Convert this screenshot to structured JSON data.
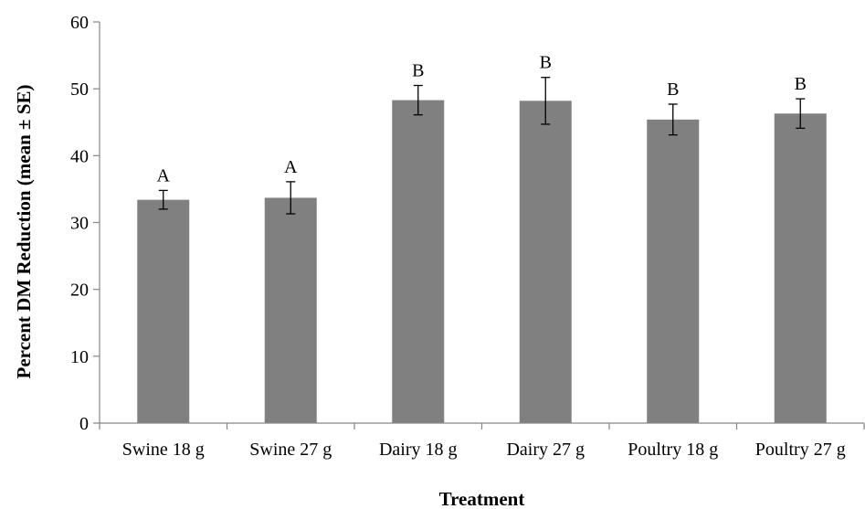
{
  "chart_data": {
    "type": "bar",
    "title": "",
    "xlabel": "Treatment",
    "ylabel": "Percent DM Reduction (mean ± SE)",
    "ylim": [
      0,
      60
    ],
    "yticks": [
      0,
      10,
      20,
      30,
      40,
      50,
      60
    ],
    "categories": [
      "Swine 18 g",
      "Swine 27 g",
      "Dairy 18 g",
      "Dairy 27 g",
      "Poultry 18 g",
      "Poultry 27 g"
    ],
    "values": [
      33.4,
      33.7,
      48.3,
      48.2,
      45.4,
      46.3
    ],
    "errors": [
      1.4,
      2.4,
      2.2,
      3.5,
      2.3,
      2.2
    ],
    "significance_labels": [
      "A",
      "A",
      "B",
      "B",
      "B",
      "B"
    ],
    "bar_color": "#808080",
    "grid": false,
    "legend": "none"
  }
}
